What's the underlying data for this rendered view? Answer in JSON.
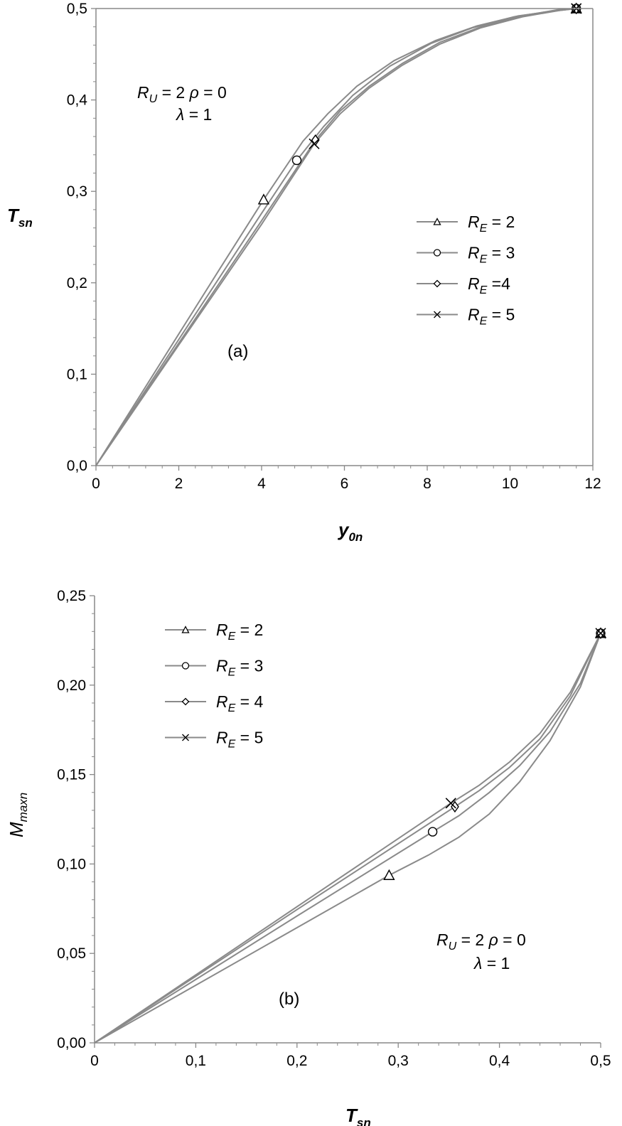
{
  "chart_data": [
    {
      "type": "line",
      "panel": "(a)",
      "xlabel": "y0n",
      "xlabel_main": "y",
      "xlabel_sub": "0n",
      "ylabel": "Tsn",
      "ylabel_main": "T",
      "ylabel_sub": "sn",
      "xlim": [
        0,
        12
      ],
      "ylim": [
        0,
        0.5
      ],
      "x_ticks": [
        0,
        2,
        4,
        6,
        8,
        10,
        12
      ],
      "x_tick_labels": [
        "0",
        "2",
        "4",
        "6",
        "8",
        "10",
        "12"
      ],
      "y_ticks": [
        0,
        0.1,
        0.2,
        0.3,
        0.4,
        0.5
      ],
      "y_tick_labels": [
        "0,0",
        "0,1",
        "0,2",
        "0,3",
        "0,4",
        "0,5"
      ],
      "grid": false,
      "legend_position": "right",
      "annotation": {
        "line1_prefix": "R",
        "line1_sub": "U",
        "line1_rest": " = 2 ",
        "line1_rho": "ρ",
        "line1_end": " = 0",
        "line2_lambda": "λ",
        "line2_end": " = 1"
      },
      "series": [
        {
          "name": "RE = 2",
          "label_main": "R",
          "label_sub": "E",
          "label_rest": " = 2",
          "marker": "triangle",
          "points": [
            [
              0,
              0
            ],
            [
              1,
              0.072
            ],
            [
              2,
              0.144
            ],
            [
              3,
              0.216
            ],
            [
              4.05,
              0.291
            ],
            [
              5.0,
              0.355
            ],
            [
              5.6,
              0.385
            ],
            [
              6.3,
              0.415
            ],
            [
              7.2,
              0.443
            ],
            [
              8.2,
              0.465
            ],
            [
              9.2,
              0.481
            ],
            [
              10.2,
              0.492
            ],
            [
              11.2,
              0.498
            ],
            [
              11.6,
              0.5
            ]
          ],
          "markers": [
            [
              4.05,
              0.291
            ],
            [
              11.6,
              0.5
            ]
          ]
        },
        {
          "name": "RE = 3",
          "label_main": "R",
          "label_sub": "E",
          "label_rest": " = 3",
          "marker": "circle",
          "points": [
            [
              0,
              0
            ],
            [
              1,
              0.069
            ],
            [
              2,
              0.138
            ],
            [
              3,
              0.207
            ],
            [
              4.0,
              0.276
            ],
            [
              4.85,
              0.334
            ],
            [
              5.5,
              0.371
            ],
            [
              6.2,
              0.405
            ],
            [
              7.1,
              0.437
            ],
            [
              8.1,
              0.462
            ],
            [
              9.1,
              0.479
            ],
            [
              10.1,
              0.491
            ],
            [
              11.1,
              0.498
            ],
            [
              11.6,
              0.5
            ]
          ],
          "markers": [
            [
              4.85,
              0.334
            ],
            [
              11.6,
              0.5
            ]
          ]
        },
        {
          "name": "RE =4",
          "label_main": "R",
          "label_sub": "E",
          "label_rest": " =4",
          "marker": "diamond",
          "points": [
            [
              0,
              0
            ],
            [
              1,
              0.067
            ],
            [
              2,
              0.134
            ],
            [
              3,
              0.201
            ],
            [
              4.0,
              0.268
            ],
            [
              5.3,
              0.356
            ],
            [
              5.9,
              0.388
            ],
            [
              6.6,
              0.415
            ],
            [
              7.4,
              0.44
            ],
            [
              8.3,
              0.463
            ],
            [
              9.3,
              0.48
            ],
            [
              10.3,
              0.492
            ],
            [
              11.2,
              0.499
            ],
            [
              11.6,
              0.5
            ]
          ],
          "markers": [
            [
              5.3,
              0.356
            ],
            [
              11.6,
              0.5
            ]
          ]
        },
        {
          "name": "RE = 5",
          "label_main": "R",
          "label_sub": "E",
          "label_rest": " = 5",
          "marker": "x",
          "points": [
            [
              0,
              0
            ],
            [
              1,
              0.066
            ],
            [
              2,
              0.132
            ],
            [
              3,
              0.198
            ],
            [
              4.0,
              0.264
            ],
            [
              5.27,
              0.352
            ],
            [
              5.9,
              0.385
            ],
            [
              6.6,
              0.413
            ],
            [
              7.4,
              0.438
            ],
            [
              8.3,
              0.461
            ],
            [
              9.3,
              0.479
            ],
            [
              10.3,
              0.491
            ],
            [
              11.2,
              0.498
            ],
            [
              11.6,
              0.5
            ]
          ],
          "markers": [
            [
              5.27,
              0.352
            ],
            [
              11.6,
              0.5
            ]
          ]
        }
      ]
    },
    {
      "type": "line",
      "panel": "(b)",
      "xlabel": "Tsn",
      "xlabel_main": "T",
      "xlabel_sub": "sn",
      "ylabel": "Mmaxn",
      "ylabel_main": "M",
      "ylabel_sub": "maxn",
      "xlim": [
        0,
        0.5
      ],
      "ylim": [
        0,
        0.25
      ],
      "x_ticks": [
        0,
        0.1,
        0.2,
        0.3,
        0.4,
        0.5
      ],
      "x_tick_labels": [
        "0",
        "0,1",
        "0,2",
        "0,3",
        "0,4",
        "0,5"
      ],
      "y_ticks": [
        0,
        0.05,
        0.1,
        0.15,
        0.2,
        0.25
      ],
      "y_tick_labels": [
        "0,00",
        "0,05",
        "0,10",
        "0,15",
        "0,20",
        "0,25"
      ],
      "grid": false,
      "legend_position": "top-left",
      "annotation": {
        "line1_prefix": "R",
        "line1_sub": "U",
        "line1_rest": " = 2 ",
        "line1_rho": "ρ",
        "line1_end": " = 0",
        "line2_lambda": "λ",
        "line2_end": " = 1"
      },
      "series": [
        {
          "name": "RE = 2",
          "label_main": "R",
          "label_sub": "E",
          "label_rest": " = 2",
          "marker": "triangle",
          "points": [
            [
              0,
              0
            ],
            [
              0.1,
              0.0322
            ],
            [
              0.2,
              0.0644
            ],
            [
              0.291,
              0.0937
            ],
            [
              0.33,
              0.105
            ],
            [
              0.36,
              0.115
            ],
            [
              0.39,
              0.128
            ],
            [
              0.42,
              0.146
            ],
            [
              0.45,
              0.169
            ],
            [
              0.48,
              0.199
            ],
            [
              0.5,
              0.229
            ]
          ],
          "markers": [
            [
              0.291,
              0.0937
            ],
            [
              0.5,
              0.229
            ]
          ]
        },
        {
          "name": "RE = 3",
          "label_main": "R",
          "label_sub": "E",
          "label_rest": " = 3",
          "marker": "circle",
          "points": [
            [
              0,
              0
            ],
            [
              0.1,
              0.0354
            ],
            [
              0.2,
              0.0709
            ],
            [
              0.334,
              0.118
            ],
            [
              0.36,
              0.127
            ],
            [
              0.39,
              0.14
            ],
            [
              0.42,
              0.155
            ],
            [
              0.45,
              0.174
            ],
            [
              0.48,
              0.201
            ],
            [
              0.5,
              0.229
            ]
          ],
          "markers": [
            [
              0.334,
              0.118
            ],
            [
              0.5,
              0.229
            ]
          ]
        },
        {
          "name": "RE = 4",
          "label_main": "R",
          "label_sub": "E",
          "label_rest": " = 4",
          "marker": "diamond",
          "points": [
            [
              0,
              0
            ],
            [
              0.1,
              0.0372
            ],
            [
              0.2,
              0.0745
            ],
            [
              0.356,
              0.132
            ],
            [
              0.38,
              0.141
            ],
            [
              0.41,
              0.154
            ],
            [
              0.44,
              0.17
            ],
            [
              0.47,
              0.194
            ],
            [
              0.5,
              0.229
            ]
          ],
          "markers": [
            [
              0.356,
              0.132
            ],
            [
              0.5,
              0.229
            ]
          ]
        },
        {
          "name": "RE = 5",
          "label_main": "R",
          "label_sub": "E",
          "label_rest": " = 5",
          "marker": "x",
          "points": [
            [
              0,
              0
            ],
            [
              0.1,
              0.038
            ],
            [
              0.2,
              0.0761
            ],
            [
              0.352,
              0.134
            ],
            [
              0.38,
              0.144
            ],
            [
              0.41,
              0.157
            ],
            [
              0.44,
              0.173
            ],
            [
              0.47,
              0.196
            ],
            [
              0.5,
              0.229
            ]
          ],
          "markers": [
            [
              0.352,
              0.134
            ],
            [
              0.5,
              0.229
            ]
          ]
        }
      ]
    }
  ],
  "colors": {
    "line": "#8a8a8a",
    "axis": "#888888",
    "marker": "#000000"
  }
}
